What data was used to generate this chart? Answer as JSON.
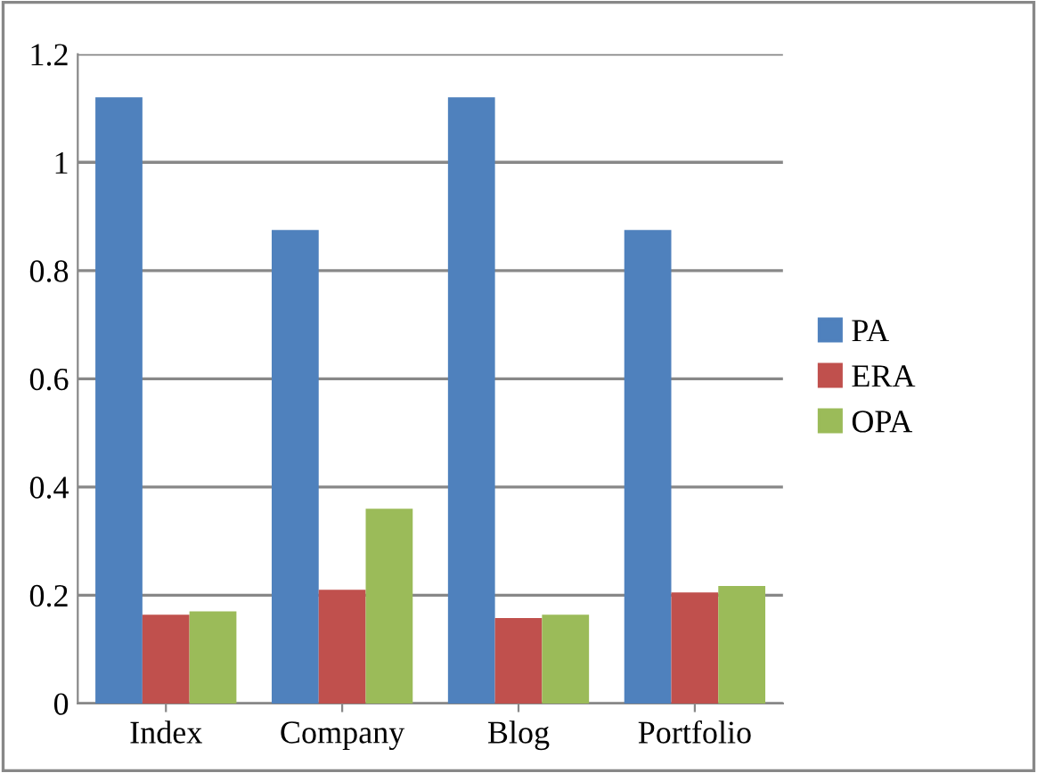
{
  "chart_data": {
    "type": "bar",
    "categories": [
      "Index",
      "Company",
      "Blog",
      "Portfolio"
    ],
    "series": [
      {
        "name": "PA",
        "color": "#4f81bd",
        "values": [
          1.12,
          0.875,
          1.12,
          0.875
        ]
      },
      {
        "name": "ERA",
        "color": "#c0504d",
        "values": [
          0.164,
          0.21,
          0.158,
          0.205
        ]
      },
      {
        "name": "OPA",
        "color": "#9bbb59",
        "values": [
          0.17,
          0.36,
          0.164,
          0.217
        ]
      }
    ],
    "ylim": [
      0,
      1.2
    ],
    "yticks": [
      0,
      0.2,
      0.4,
      0.6,
      0.8,
      1,
      1.2
    ],
    "grid": "y",
    "legend": "right"
  }
}
